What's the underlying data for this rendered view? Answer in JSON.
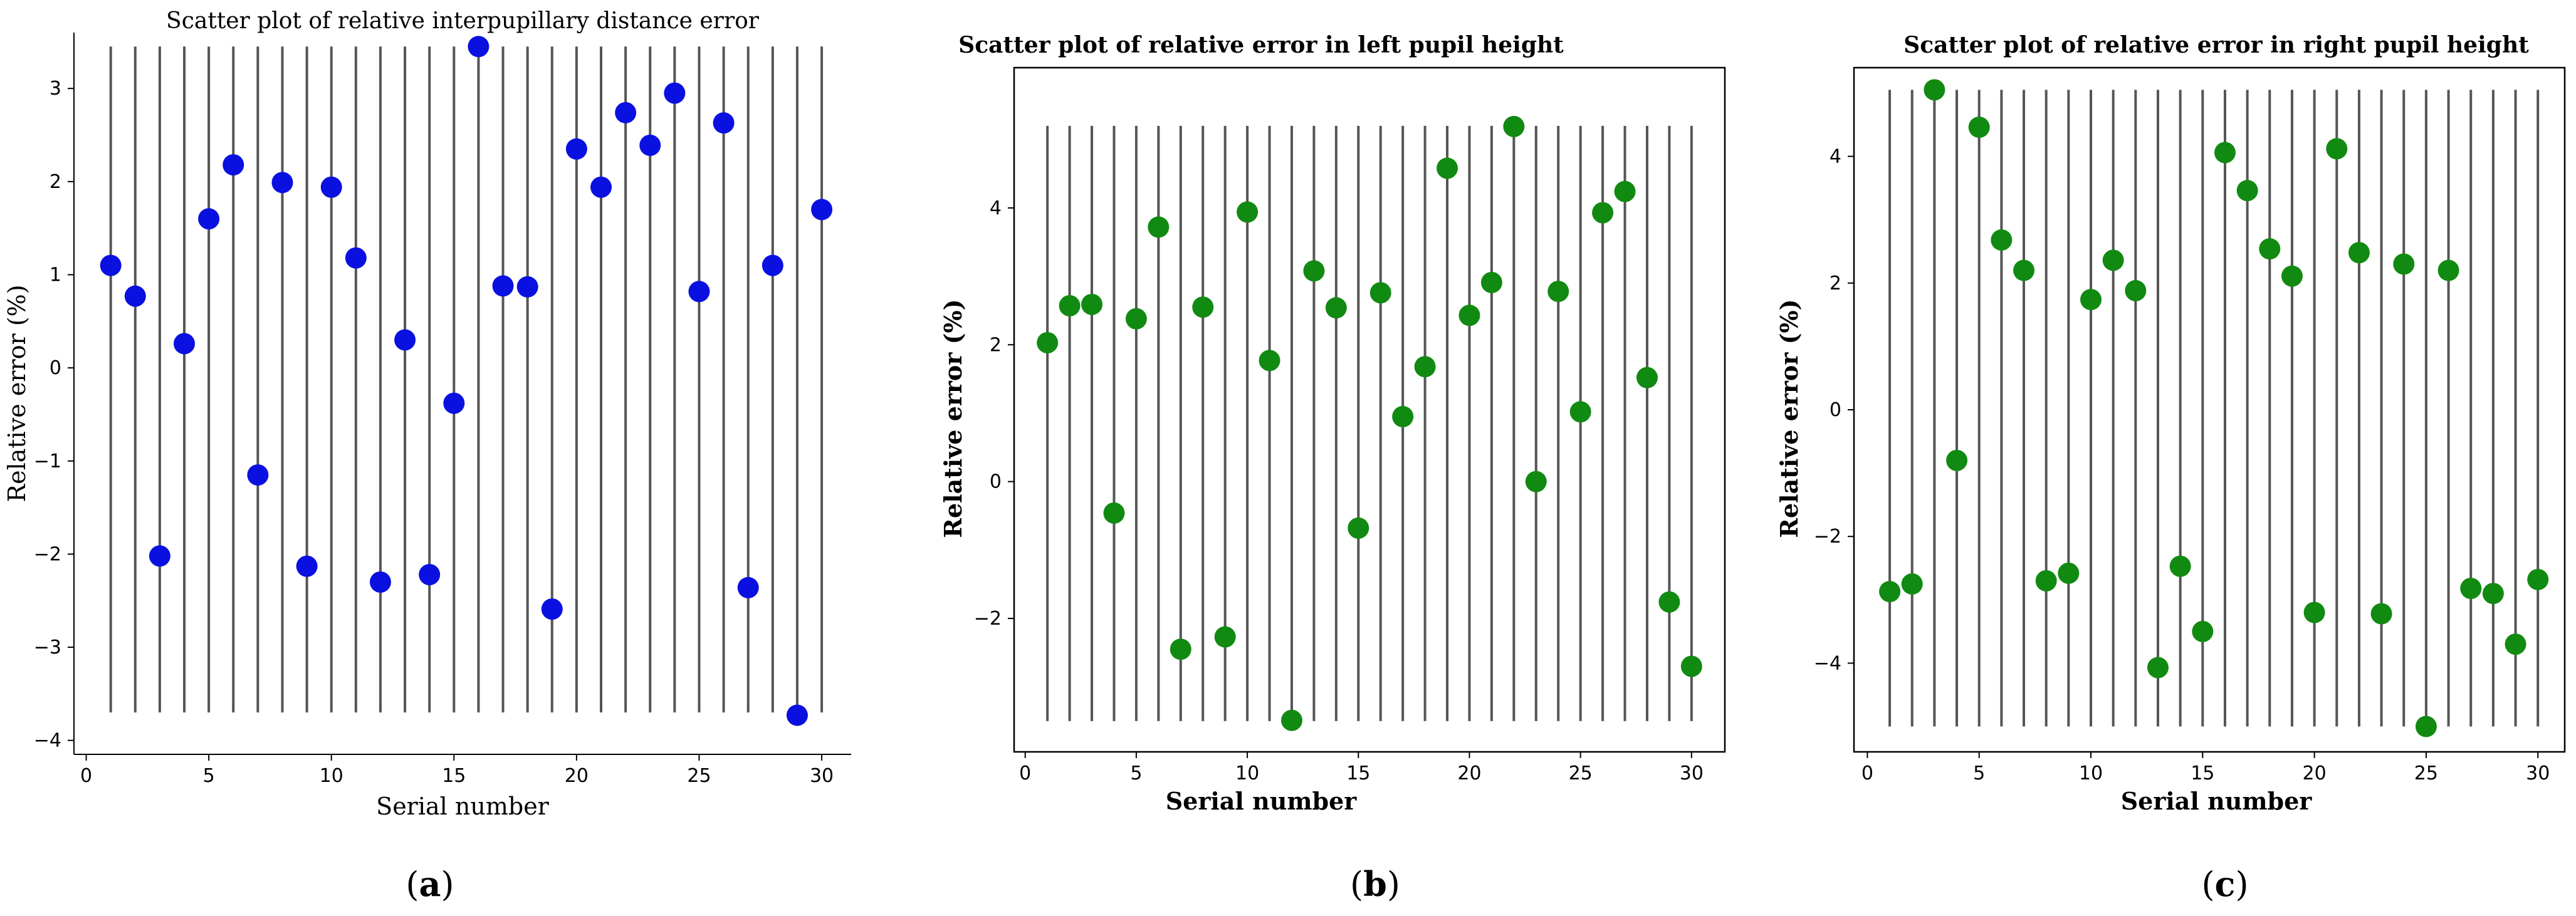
{
  "figure": {
    "panel_labels": [
      "(a)",
      "(b)",
      "(c)"
    ],
    "panel_letters": [
      "a",
      "b",
      "c"
    ]
  },
  "colors": {
    "panel_a_marker": "#0a10e0",
    "panel_bc_marker": "#118a11",
    "stem": "#555555"
  },
  "chart_data": [
    {
      "type": "scatter",
      "title": "Scatter plot of relative interpupillary distance error",
      "xlabel": "Serial number",
      "ylabel": "Relative error (%)",
      "xlim": [
        -0.5,
        31.2
      ],
      "ylim": [
        -4.15,
        3.6
      ],
      "stem_range": [
        -3.7,
        3.45
      ],
      "xticks": [
        0,
        5,
        10,
        15,
        20,
        25,
        30
      ],
      "yticks": [
        -4,
        -3,
        -2,
        -1,
        0,
        1,
        2,
        3
      ],
      "x": [
        1,
        2,
        3,
        4,
        5,
        6,
        7,
        8,
        9,
        10,
        11,
        12,
        13,
        14,
        15,
        16,
        17,
        18,
        19,
        20,
        21,
        22,
        23,
        24,
        25,
        26,
        27,
        28,
        29,
        30
      ],
      "y": [
        1.1,
        0.77,
        -2.02,
        0.26,
        1.6,
        2.18,
        -1.15,
        1.99,
        -2.13,
        1.94,
        1.18,
        -2.3,
        0.3,
        -2.22,
        -0.38,
        3.45,
        0.88,
        0.87,
        -2.59,
        2.35,
        1.94,
        2.74,
        2.39,
        2.95,
        0.82,
        2.63,
        -2.36,
        1.1,
        -3.73,
        1.7
      ],
      "color": "#0a10e0",
      "frame": "open"
    },
    {
      "type": "scatter",
      "title": "Scatter plot of relative error in left pupil height",
      "xlabel": "Serial number",
      "ylabel": "Relative error (%)",
      "xlim": [
        -0.5,
        31.5
      ],
      "ylim": [
        -3.95,
        6.05
      ],
      "stem_range": [
        -3.5,
        5.2
      ],
      "xticks": [
        0,
        5,
        10,
        15,
        20,
        25,
        30
      ],
      "yticks": [
        -2,
        0,
        2,
        4
      ],
      "x": [
        1,
        2,
        3,
        4,
        5,
        6,
        7,
        8,
        9,
        10,
        11,
        12,
        13,
        14,
        15,
        16,
        17,
        18,
        19,
        20,
        21,
        22,
        23,
        24,
        25,
        26,
        27,
        28,
        29,
        30
      ],
      "y": [
        2.03,
        2.57,
        2.59,
        -0.46,
        2.38,
        3.72,
        -2.45,
        2.55,
        -2.27,
        3.94,
        1.77,
        -3.49,
        3.08,
        2.54,
        -0.68,
        2.76,
        0.95,
        1.68,
        4.58,
        2.43,
        2.91,
        5.19,
        0.0,
        2.78,
        1.02,
        3.93,
        4.24,
        1.52,
        -1.76,
        -2.7
      ],
      "color": "#118a11",
      "frame": "box"
    },
    {
      "type": "scatter",
      "title": "Scatter plot of relative error in right pupil height",
      "xlabel": "Serial number",
      "ylabel": "Relative error (%)",
      "xlim": [
        -0.6,
        31.2
      ],
      "ylim": [
        -5.4,
        5.4
      ],
      "stem_range": [
        -5.0,
        5.05
      ],
      "xticks": [
        0,
        5,
        10,
        15,
        20,
        25,
        30
      ],
      "yticks": [
        -4,
        -2,
        0,
        2,
        4
      ],
      "x": [
        1,
        2,
        3,
        4,
        5,
        6,
        7,
        8,
        9,
        10,
        11,
        12,
        13,
        14,
        15,
        16,
        17,
        18,
        19,
        20,
        21,
        22,
        23,
        24,
        25,
        26,
        27,
        28,
        29,
        30
      ],
      "y": [
        -2.87,
        -2.75,
        5.05,
        -0.8,
        4.46,
        2.68,
        2.2,
        -2.7,
        -2.58,
        1.74,
        2.36,
        1.88,
        -4.07,
        -2.47,
        -3.5,
        4.06,
        3.46,
        2.54,
        2.11,
        -3.2,
        4.12,
        2.48,
        -3.22,
        2.3,
        -5.0,
        2.2,
        -2.82,
        -2.9,
        -3.7,
        -2.68
      ],
      "color": "#118a11",
      "frame": "box"
    }
  ]
}
